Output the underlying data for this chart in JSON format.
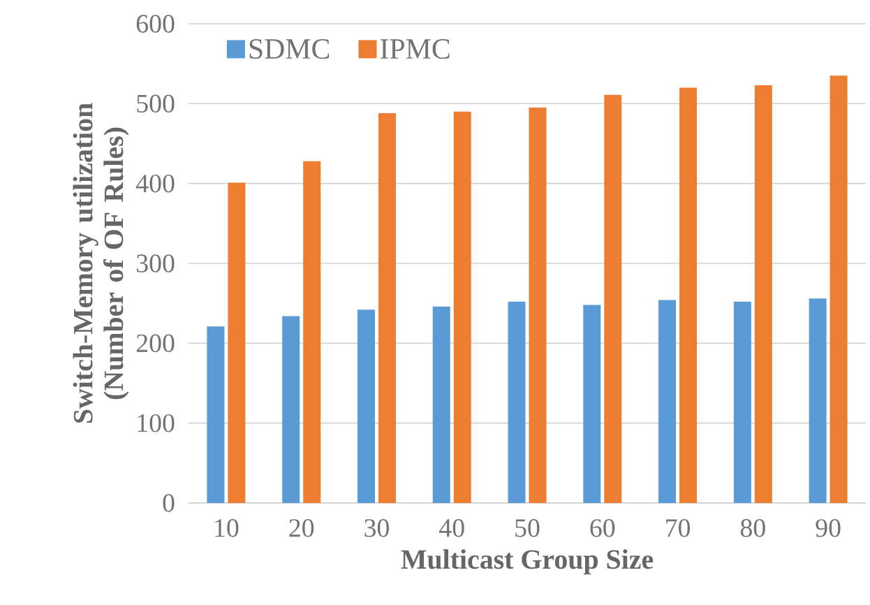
{
  "chart_data": {
    "type": "bar",
    "xlabel": "Multicast Group Size",
    "ylabel": "Switch-Memory utilization (Number of OF Rules)",
    "categories": [
      "10",
      "20",
      "30",
      "40",
      "50",
      "60",
      "70",
      "80",
      "90"
    ],
    "series": [
      {
        "name": "SDMC",
        "color": "#5b9bd5",
        "values": [
          221,
          234,
          242,
          246,
          252,
          248,
          254,
          252,
          256
        ]
      },
      {
        "name": "IPMC",
        "color": "#ed7d31",
        "values": [
          401,
          428,
          488,
          490,
          495,
          511,
          520,
          523,
          535
        ]
      }
    ],
    "ylim": [
      0,
      600
    ],
    "yticks": [
      0,
      100,
      200,
      300,
      400,
      500,
      600
    ],
    "grid": "y",
    "legend": "top left"
  }
}
